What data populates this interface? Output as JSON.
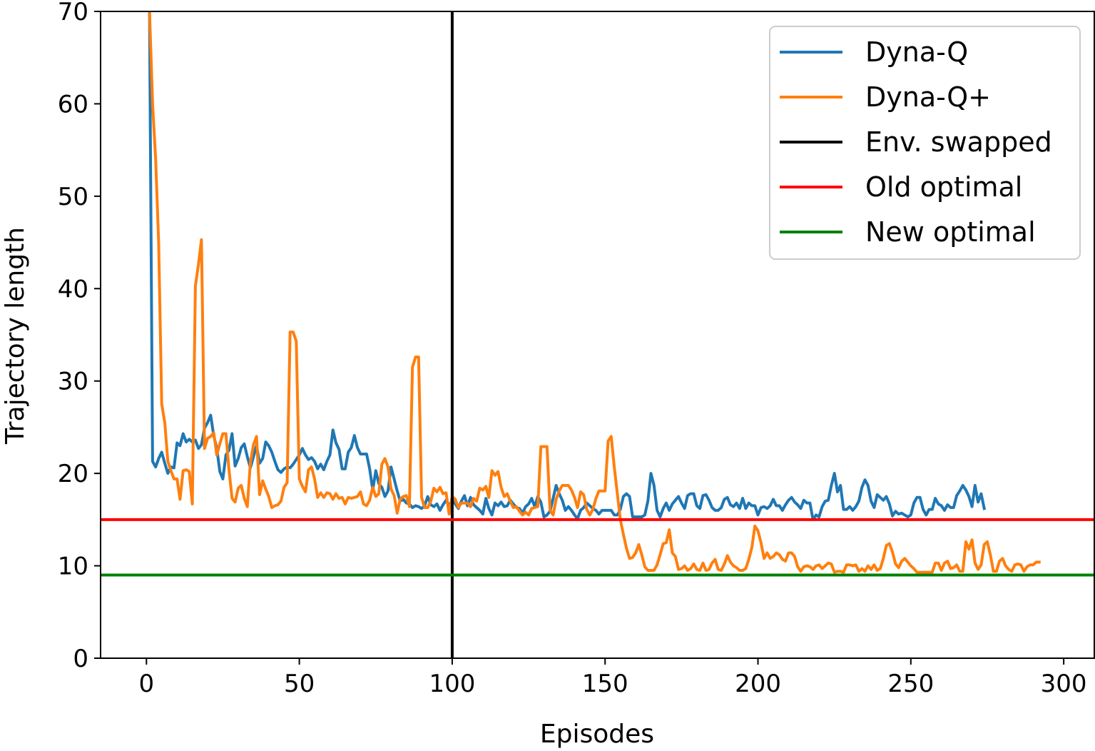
{
  "chart_data": {
    "type": "line",
    "xlabel": "Episodes",
    "ylabel": "Trajectory length",
    "xlim": [
      -15,
      310
    ],
    "ylim": [
      0,
      70
    ],
    "xticks": [
      0,
      50,
      100,
      150,
      200,
      250,
      300
    ],
    "yticks": [
      0,
      10,
      20,
      30,
      40,
      50,
      60,
      70
    ],
    "grid": false,
    "legend_position": "top-right",
    "series": [
      {
        "name": "Dyna-Q",
        "color": "#1f77b4",
        "x_start": 1,
        "values": [
          70,
          21.3,
          20.7,
          21.6,
          22.3,
          21.1,
          20.0,
          20.7,
          20.6,
          23.3,
          23.0,
          24.3,
          23.4,
          23.7,
          23.4,
          23.6,
          22.7,
          23.1,
          24.9,
          25.5,
          26.3,
          24.1,
          22.7,
          20.2,
          19.4,
          22.0,
          22.5,
          24.3,
          20.8,
          21.6,
          22.8,
          23.2,
          21.8,
          20.6,
          21.8,
          23.0,
          21.1,
          21.6,
          23.4,
          23.0,
          22.3,
          21.3,
          20.4,
          20.1,
          20.5,
          20.7,
          20.6,
          21.0,
          21.5,
          22.0,
          22.7,
          22.0,
          21.5,
          21.7,
          21.3,
          20.5,
          21.0,
          20.4,
          21.3,
          22.0,
          24.7,
          23.3,
          22.6,
          20.5,
          20.5,
          22.3,
          22.8,
          24.1,
          22.8,
          22.1,
          22.1,
          22.1,
          20.5,
          18.2,
          20.3,
          18.9,
          18.5,
          17.5,
          18.1,
          20.7,
          19.4,
          18.1,
          17.0,
          17.2,
          16.8,
          16.7,
          16.3,
          16.5,
          16.4,
          16.2,
          16.5,
          17.5,
          16.6,
          16.4,
          16.7,
          16.0,
          16.6,
          17.1,
          16.5,
          17.1,
          16.7,
          16.2,
          17.0,
          17.6,
          16.5,
          17.4,
          16.6,
          16.3,
          16.0,
          15.6,
          17.3,
          16.2,
          15.5,
          16.8,
          16.5,
          16.9,
          16.4,
          16.5,
          17.1,
          16.7,
          16.3,
          16.2,
          15.7,
          16.4,
          16.7,
          17.3,
          16.4,
          17.5,
          16.9,
          15.3,
          15.5,
          15.9,
          17.3,
          18.7,
          17.8,
          17.1,
          16.0,
          16.4,
          16.0,
          15.5,
          15.1,
          16.0,
          16.3,
          16.8,
          16.5,
          16.2,
          16.0,
          15.6,
          16.0,
          16.0,
          16.0,
          16.0,
          15.5,
          15.5,
          16.1,
          17.5,
          17.8,
          17.5,
          15.3,
          15.3,
          15.3,
          15.3,
          15.5,
          17.0,
          20.0,
          18.7,
          16.0,
          15.3,
          16.2,
          16.8,
          16.0,
          16.7,
          17.1,
          17.5,
          16.8,
          16.2,
          17.6,
          17.8,
          17.8,
          16.5,
          16.2,
          17.6,
          17.7,
          17.1,
          16.3,
          16.0,
          16.0,
          16.3,
          17.2,
          17.4,
          16.6,
          16.4,
          16.8,
          16.2,
          17.3,
          16.2,
          16.8,
          16.5,
          16.5,
          15.5,
          16.3,
          16.4,
          16.2,
          16.5,
          17.2,
          16.5,
          16.5,
          16.0,
          16.6,
          17.1,
          17.4,
          16.9,
          16.6,
          16.2,
          17.1,
          16.8,
          16.8,
          15.0,
          15.5,
          15.3,
          16.4,
          17.0,
          17.1,
          18.7,
          20.0,
          18.0,
          18.7,
          16.1,
          16.1,
          16.4,
          16.0,
          16.4,
          17.0,
          18.5,
          19.3,
          18.7,
          17.0,
          16.3,
          17.7,
          17.4,
          17.1,
          17.5,
          16.7,
          15.4,
          15.9,
          15.6,
          15.7,
          15.5,
          15.3,
          15.5,
          16.8,
          17.4,
          17.4,
          16.1,
          15.5,
          16.1,
          16.1,
          17.3,
          16.7,
          16.5,
          16.0,
          16.6,
          16.3,
          16.3,
          17.6,
          18.1,
          18.7,
          18.2,
          17.5,
          16.4,
          18.7,
          16.9,
          17.8,
          16.2
        ]
      },
      {
        "name": "Dyna-Q+",
        "color": "#ff7f0e",
        "x_start": 1,
        "values": [
          70,
          60,
          54,
          45,
          27.5,
          25.5,
          21.3,
          20.3,
          19.4,
          19.4,
          17.2,
          20.3,
          20.4,
          20.2,
          16.7,
          40.3,
          42.6,
          45.3,
          22.7,
          23.8,
          24.0,
          24.4,
          22.0,
          23.2,
          24.3,
          24.3,
          20.4,
          17.3,
          16.9,
          18.4,
          18.7,
          17.3,
          16.4,
          21.2,
          23.1,
          24.0,
          17.7,
          19.2,
          18.3,
          17.5,
          16.3,
          16.5,
          16.6,
          17.0,
          18.5,
          19.0,
          35.3,
          35.3,
          34.3,
          19.4,
          18.6,
          18.0,
          20.4,
          20.7,
          19.4,
          17.4,
          17.9,
          17.4,
          17.9,
          17.8,
          17.2,
          17.8,
          17.3,
          17.4,
          16.7,
          17.4,
          17.3,
          17.4,
          17.5,
          18.0,
          16.7,
          16.5,
          17.1,
          18.5,
          17.5,
          17.8,
          21.0,
          21.6,
          20.7,
          18.3,
          17.6,
          15.7,
          17.2,
          17.5,
          17.6,
          16.4,
          31.5,
          32.6,
          32.6,
          17.4,
          16.3,
          16.3,
          17.0,
          18.4,
          18.0,
          18.5,
          17.8,
          17.9,
          15.6,
          17.5,
          17.2,
          16.3,
          16.8,
          16.8,
          16.8,
          16.4,
          17.3,
          17.0,
          18.4,
          18.2,
          18.6,
          17.4,
          20.3,
          19.8,
          20.2,
          18.5,
          17.5,
          17.8,
          17.0,
          16.3,
          16.4,
          15.9,
          15.5,
          15.8,
          15.5,
          16.2,
          16.3,
          16.4,
          22.9,
          22.9,
          22.9,
          16.0,
          15.5,
          17.2,
          18.1,
          18.7,
          18.7,
          18.7,
          18.2,
          17.4,
          16.3,
          18.0,
          17.7,
          16.1,
          15.5,
          16.1,
          17.3,
          18.1,
          18.1,
          18.1,
          23.5,
          24.0,
          20.7,
          17.8,
          15.0,
          13.4,
          11.9,
          10.8,
          10.9,
          11.4,
          12.3,
          11.2,
          9.9,
          9.5,
          9.5,
          9.5,
          10.1,
          11.2,
          12.4,
          12.5,
          13.9,
          11.4,
          11.0,
          9.6,
          9.7,
          10.0,
          9.5,
          9.7,
          10.2,
          9.6,
          9.5,
          10.3,
          9.5,
          9.6,
          10.3,
          10.7,
          9.6,
          9.5,
          10.2,
          11.1,
          10.4,
          10.0,
          9.8,
          9.5,
          9.5,
          9.7,
          10.7,
          12.0,
          14.3,
          13.8,
          12.5,
          10.8,
          11.4,
          10.8,
          11.0,
          11.4,
          11.2,
          10.7,
          10.5,
          11.4,
          11.4,
          11.0,
          9.9,
          9.4,
          9.9,
          10.0,
          9.9,
          9.6,
          10.0,
          10.1,
          9.7,
          10.0,
          10.3,
          10.2,
          9.3,
          9.4,
          9.4,
          9.3,
          10.1,
          10.1,
          10.0,
          10.1,
          9.4,
          9.7,
          9.4,
          10.0,
          9.6,
          10.1,
          9.5,
          9.7,
          10.8,
          12.2,
          12.4,
          11.5,
          10.2,
          9.8,
          10.5,
          10.8,
          10.4,
          10.0,
          9.7,
          9.3,
          9.3,
          9.3,
          9.3,
          9.3,
          9.3,
          10.3,
          10.3,
          9.5,
          10.3,
          10.5,
          9.7,
          9.8,
          10.1,
          9.4,
          9.4,
          12.6,
          11.8,
          12.8,
          10.3,
          9.6,
          10.1,
          12.3,
          12.6,
          11.2,
          9.4,
          9.4,
          10.5,
          10.8,
          10.0,
          9.6,
          9.4,
          10.1,
          10.2,
          10.1,
          9.4,
          9.9,
          10.1,
          10.1,
          10.4,
          10.4
        ]
      }
    ],
    "reference_lines": [
      {
        "name": "Env. swapped",
        "orientation": "vertical",
        "x": 100,
        "color": "#000000"
      },
      {
        "name": "Old optimal",
        "orientation": "horizontal",
        "y": 15,
        "color": "#ff0000"
      },
      {
        "name": "New optimal",
        "orientation": "horizontal",
        "y": 9,
        "color": "#008000"
      }
    ]
  }
}
